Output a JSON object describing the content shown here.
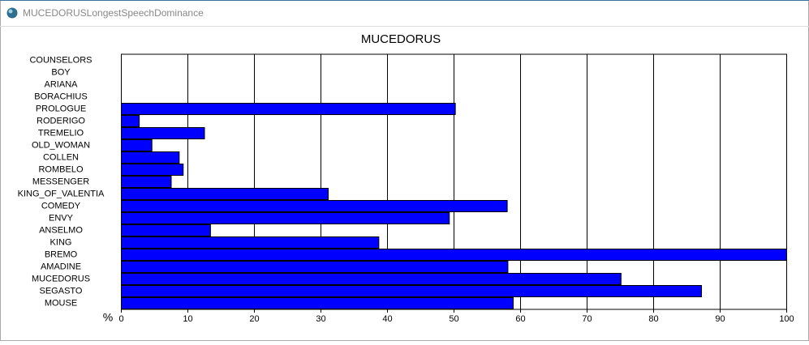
{
  "window": {
    "title": "MUCEDORUSLongestSpeechDominance"
  },
  "chart_data": {
    "type": "barh",
    "title": "MUCEDORUS",
    "xlabel": "%",
    "categories": [
      "COUNSELORS",
      "BOY",
      "ARIANA",
      "BORACHIUS",
      "PROLOGUE",
      "RODERIGO",
      "TREMELIO",
      "OLD_WOMAN",
      "COLLEN",
      "ROMBELO",
      "MESSENGER",
      "KING_OF_VALENTIA",
      "COMEDY",
      "ENVY",
      "ANSELMO",
      "KING",
      "BREMO",
      "AMADINE",
      "MUCEDORUS",
      "SEGASTO",
      "MOUSE"
    ],
    "values": [
      0,
      0,
      0,
      0,
      50.2,
      2.7,
      12.5,
      4.6,
      8.7,
      9.3,
      7.5,
      31.1,
      58,
      49.3,
      13.4,
      38.7,
      100,
      58.1,
      75.1,
      87.2,
      58.9
    ],
    "color": "#0000ff",
    "xlim": [
      0,
      100
    ],
    "xticks": [
      0,
      10,
      20,
      30,
      40,
      50,
      60,
      70,
      80,
      90,
      100
    ],
    "grid": true
  }
}
